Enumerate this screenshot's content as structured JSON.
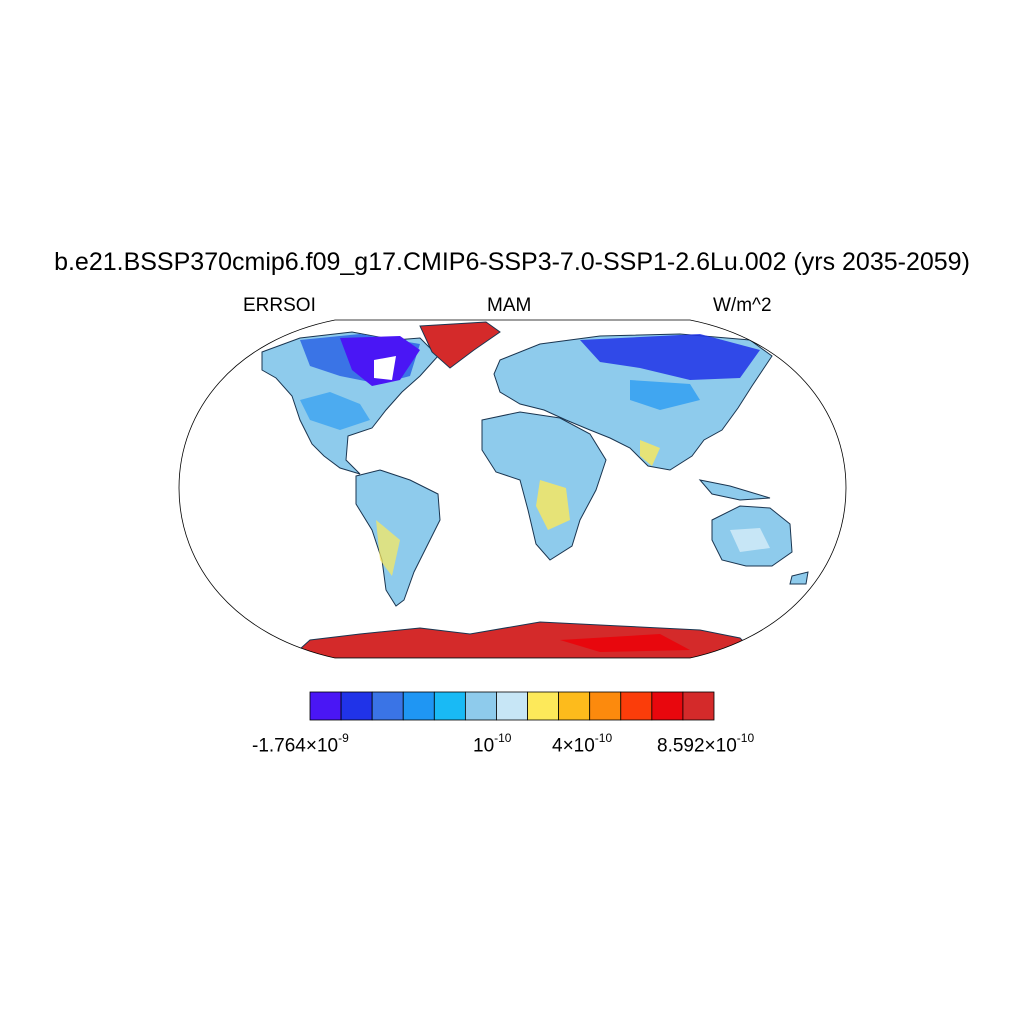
{
  "title": "b.e21.BSSP370cmip6.f09_g17.CMIP6-SSP3-7.0-SSP1-2.6Lu.002 (yrs 2035-2059)",
  "left_label": "ERRSOI",
  "center_label": "MAM",
  "right_label": "W/m^2",
  "colorbar": {
    "colors": [
      "#4a16f5",
      "#2033e8",
      "#3a74e6",
      "#1f96f3",
      "#19baf5",
      "#8ecbec",
      "#c7e6f6",
      "#fde95a",
      "#fdbb1c",
      "#fc8a0d",
      "#fb3d0a",
      "#e8070d",
      "#d42a2a"
    ],
    "labels": [
      {
        "mantissa": "-1.764×10",
        "exponent": "-9"
      },
      {
        "mantissa": "10",
        "exponent": "-10"
      },
      {
        "mantissa": "4×10",
        "exponent": "-10"
      },
      {
        "mantissa": "8.592×10",
        "exponent": "-10"
      }
    ]
  }
}
